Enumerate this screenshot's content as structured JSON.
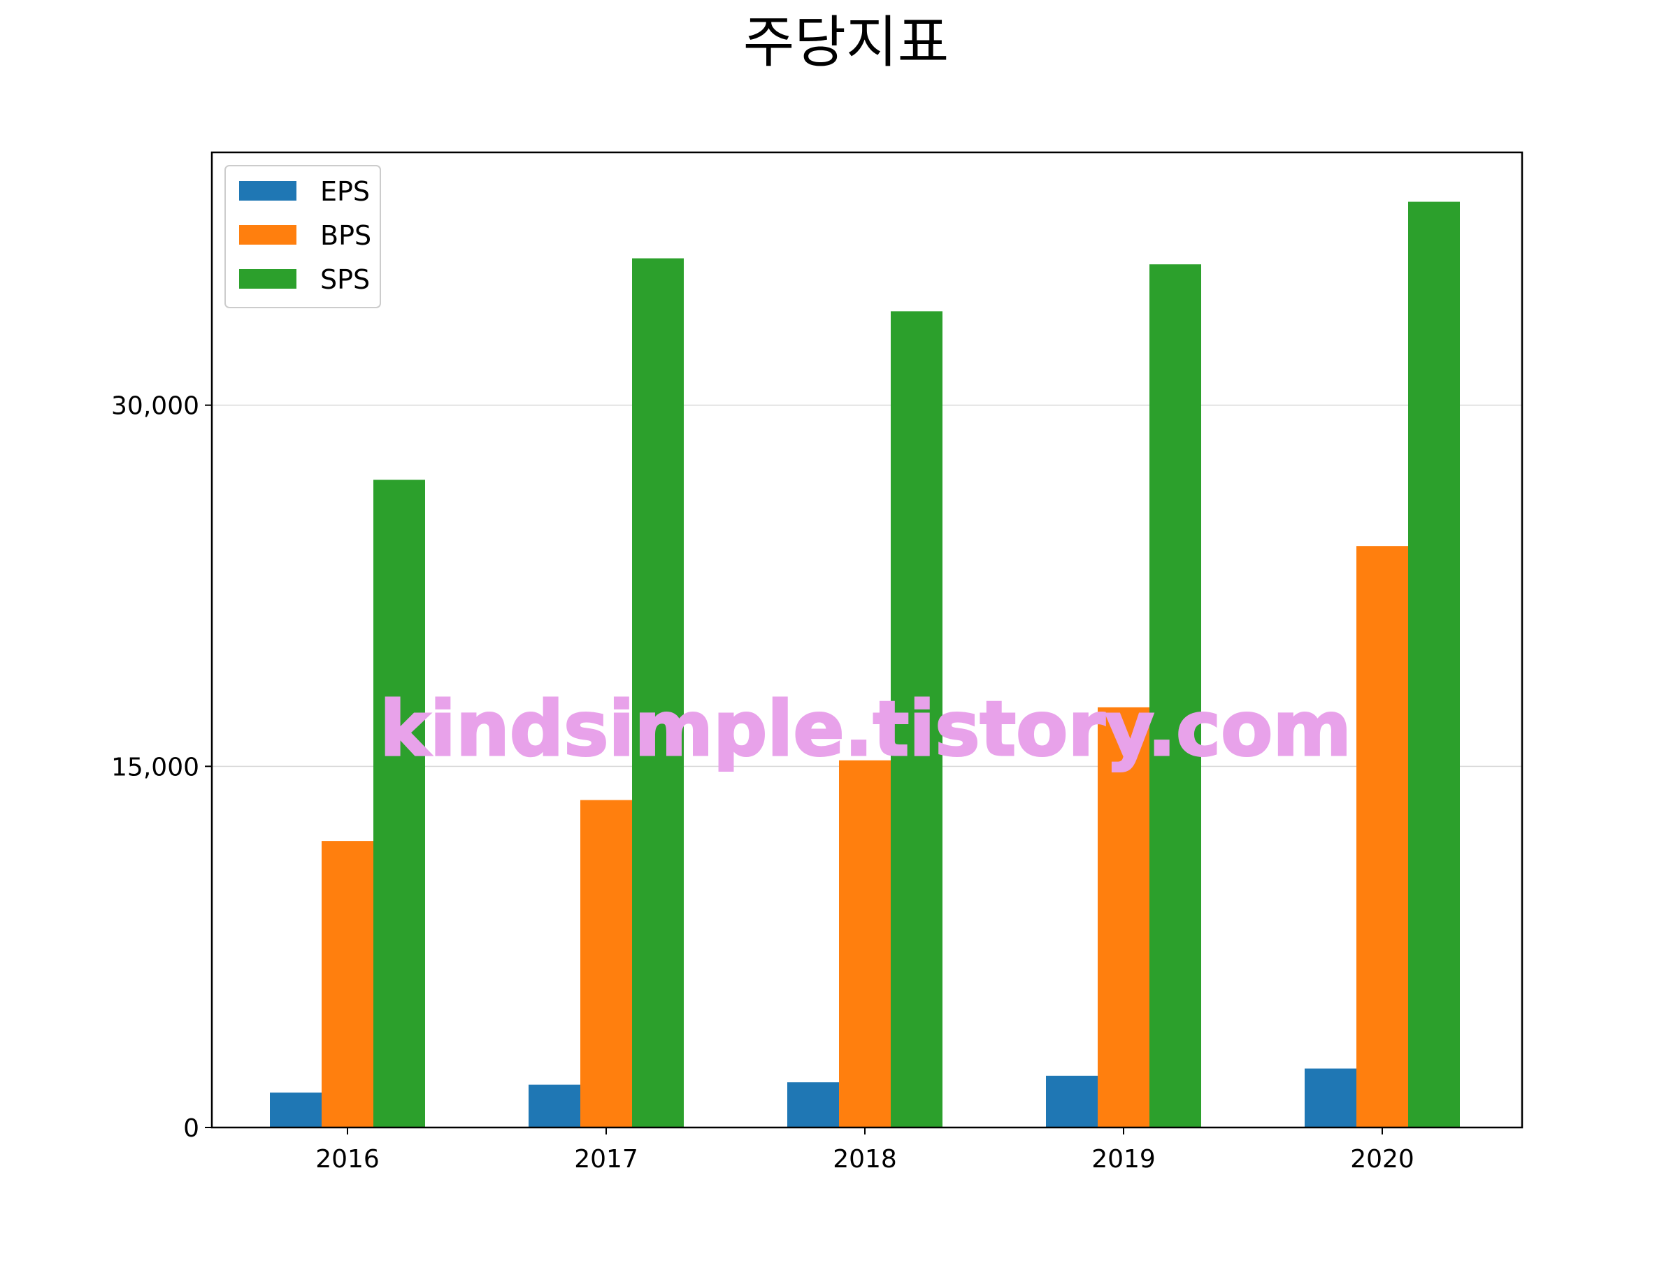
{
  "chart_data": {
    "type": "bar",
    "title": "주당지표",
    "xlabel": "",
    "ylabel": "",
    "categories": [
      "2016",
      "2017",
      "2018",
      "2019",
      "2020"
    ],
    "series": [
      {
        "name": "EPS",
        "color": "#1f77b4",
        "values": [
          1450,
          1780,
          1880,
          2150,
          2450
        ]
      },
      {
        "name": "BPS",
        "color": "#ff7f0e",
        "values": [
          11900,
          13600,
          15250,
          17450,
          24150
        ]
      },
      {
        "name": "SPS",
        "color": "#2ca02c",
        "values": [
          26900,
          36100,
          33900,
          35850,
          38450
        ]
      }
    ],
    "ylim": [
      0,
      40500
    ],
    "yticks": [
      0,
      15000,
      30000
    ],
    "ytick_labels": [
      "0",
      "15,000",
      "30,000"
    ],
    "grid": "y",
    "legend": "upper-left"
  },
  "watermark": "kindsimple.tistory.com"
}
